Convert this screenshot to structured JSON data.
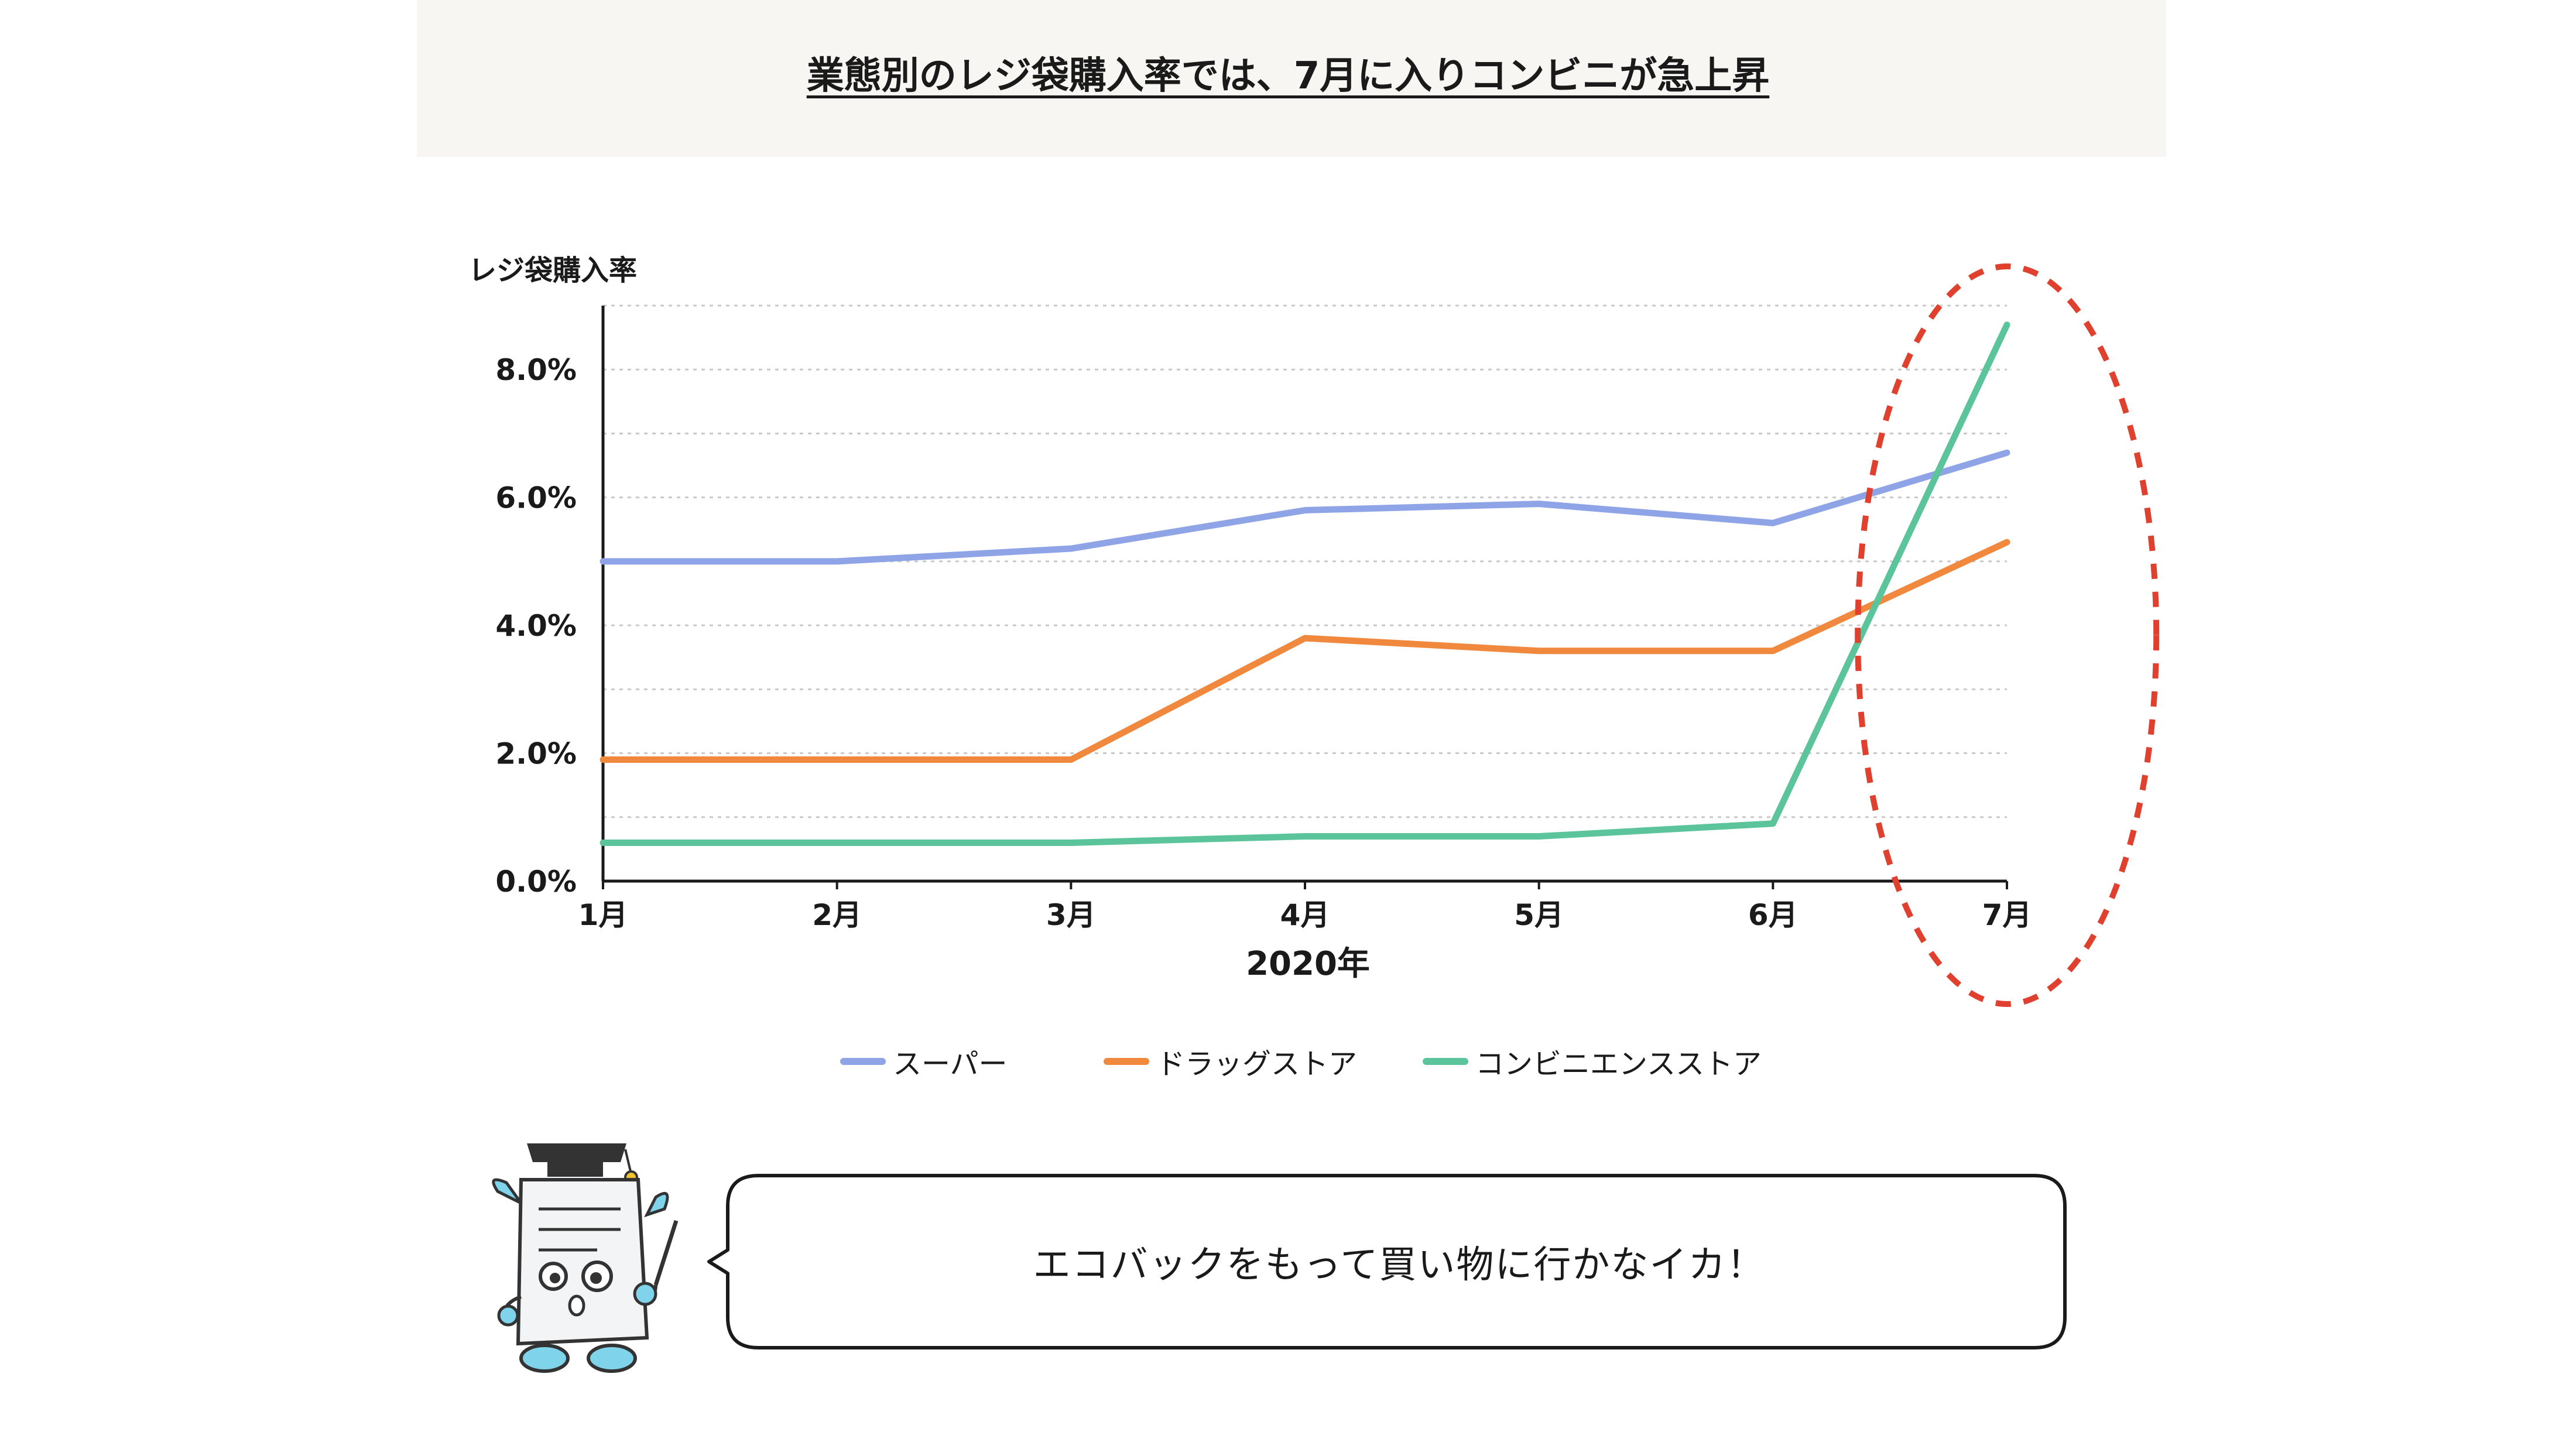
{
  "header": {
    "title": "業態別のレジ袋購入率では、7月に入りコンビニが急上昇"
  },
  "chart_data": {
    "type": "line",
    "ylabel": "レジ袋購入率",
    "xlabel": "2020年",
    "categories": [
      "1月",
      "2月",
      "3月",
      "4月",
      "5月",
      "6月",
      "7月"
    ],
    "y_tick_labels": [
      "0.0%",
      "2.0%",
      "4.0%",
      "6.0%",
      "8.0%"
    ],
    "ylim": [
      0,
      9
    ],
    "y_major_step": 2,
    "y_grid_step": 1,
    "grid": true,
    "legend_position": "bottom",
    "series": [
      {
        "name": "スーパー",
        "color": "#8fa4e6",
        "values": [
          5.0,
          5.0,
          5.2,
          5.8,
          5.9,
          5.6,
          6.7
        ]
      },
      {
        "name": "ドラッグストア",
        "color": "#f0883e",
        "values": [
          1.9,
          1.9,
          1.9,
          3.8,
          3.6,
          3.6,
          5.3
        ]
      },
      {
        "name": "コンビニエンスストア",
        "color": "#5cc49a",
        "values": [
          0.6,
          0.6,
          0.6,
          0.7,
          0.7,
          0.9,
          8.7
        ]
      }
    ],
    "annotation": {
      "type": "dashed-ellipse",
      "color": "#e0412f",
      "highlights": "6月–7月"
    }
  },
  "mascot": {
    "icon": "owl-professor-mascot-icon"
  },
  "speech_bubble": {
    "text": "エコバックをもって買い物に行かなイカ！"
  }
}
